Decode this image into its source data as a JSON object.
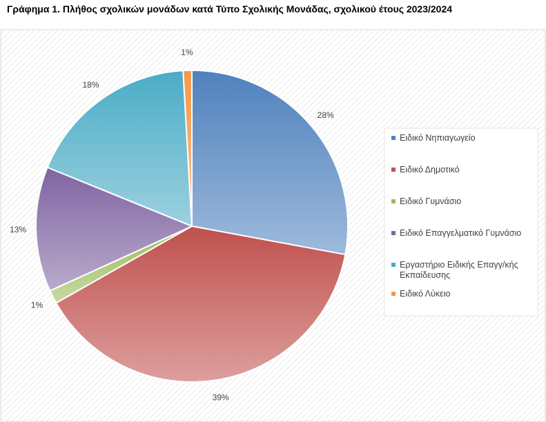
{
  "title": "Γράφημα 1. Πλήθος σχολικών μονάδων κατά Τύπο Σχολικής Μονάδας, σχολικού έτους 2023/2024",
  "chart_data": {
    "type": "pie",
    "title": "Γράφημα 1. Πλήθος σχολικών μονάδων κατά Τύπο Σχολικής Μονάδας, σχολικού έτους 2023/2024",
    "legend_position": "right",
    "grid": false,
    "slices": [
      {
        "name": "Ειδικό Νηπιαγωγείο",
        "value": 28,
        "label": "28%",
        "color": "#4f81bd"
      },
      {
        "name": "Ειδικό Δημοτικό",
        "value": 39,
        "label": "39%",
        "color": "#c0504d"
      },
      {
        "name": "Ειδικό Γυμνάσιο",
        "value": 1.4,
        "label": "1%",
        "color": "#9bbb59"
      },
      {
        "name": "Ειδικό Επαγγελματικό Γυμνάσιο",
        "value": 13,
        "label": "13%",
        "color": "#8064a2"
      },
      {
        "name": "Εργαστήριο Ειδικής Επαγγ/κής Εκπαίδευσης",
        "value": 18,
        "label": "18%",
        "color": "#4bacc6"
      },
      {
        "name": "Ειδικό Λύκειο",
        "value": 0.9,
        "label": "1%",
        "color": "#f79646"
      }
    ]
  }
}
